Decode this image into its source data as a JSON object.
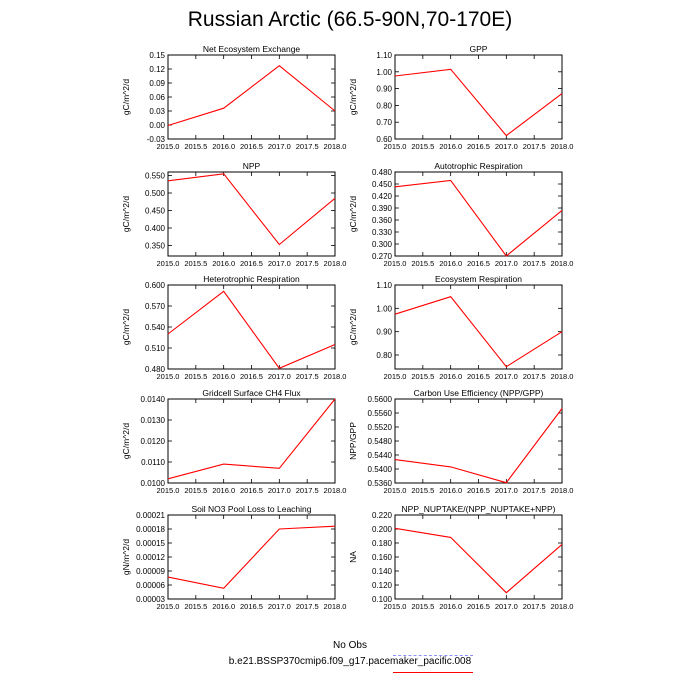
{
  "title": "Russian Arctic (66.5-90N,70-170E)",
  "colors": {
    "series": "#ff0000",
    "obs": "#9090ff",
    "frame": "#000000"
  },
  "legend": {
    "obs_label": "No Obs",
    "model_label": "b.e21.BSSP370cmip6.f09_g17.pacemaker_pacific.008"
  },
  "chart_data": [
    {
      "type": "line",
      "title": "Net Ecosystem Exchange",
      "ylabel": "gC/m^2/d",
      "x": [
        2015.0,
        2016.0,
        2017.0,
        2018.0
      ],
      "y": [
        -0.001,
        0.036,
        0.127,
        0.03
      ],
      "xlim": [
        2015.0,
        2018.0
      ],
      "ylim": [
        -0.03,
        0.15
      ],
      "xticks": [
        "2015.0",
        "2015.5",
        "2016.0",
        "2016.5",
        "2017.0",
        "2017.5",
        "2018.0"
      ],
      "yticks": [
        "-0.03",
        "0.00",
        "0.03",
        "0.06",
        "0.09",
        "0.12",
        "0.15"
      ]
    },
    {
      "type": "line",
      "title": "GPP",
      "ylabel": "gC/m^2/d",
      "x": [
        2015.0,
        2016.0,
        2017.0,
        2018.0
      ],
      "y": [
        0.975,
        1.015,
        0.62,
        0.87
      ],
      "xlim": [
        2015.0,
        2018.0
      ],
      "ylim": [
        0.6,
        1.1
      ],
      "xticks": [
        "2015.0",
        "2015.5",
        "2016.0",
        "2016.5",
        "2017.0",
        "2017.5",
        "2018.0"
      ],
      "yticks": [
        "0.60",
        "0.70",
        "0.80",
        "0.90",
        "1.00",
        "1.10"
      ]
    },
    {
      "type": "line",
      "title": "NPP",
      "ylabel": "gC/m^2/d",
      "x": [
        2015.0,
        2016.0,
        2017.0,
        2018.0
      ],
      "y": [
        0.535,
        0.555,
        0.353,
        0.485
      ],
      "xlim": [
        2015.0,
        2018.0
      ],
      "ylim": [
        0.32,
        0.56
      ],
      "xticks": [
        "2015.0",
        "2015.5",
        "2016.0",
        "2016.5",
        "2017.0",
        "2017.5",
        "2018.0"
      ],
      "yticks": [
        "0.350",
        "0.400",
        "0.450",
        "0.500",
        "0.550"
      ]
    },
    {
      "type": "line",
      "title": "Autotrophic Respiration",
      "ylabel": "gC/m^2/d",
      "x": [
        2015.0,
        2016.0,
        2017.0,
        2018.0
      ],
      "y": [
        0.443,
        0.459,
        0.27,
        0.384
      ],
      "xlim": [
        2015.0,
        2018.0
      ],
      "ylim": [
        0.27,
        0.48
      ],
      "xticks": [
        "2015.0",
        "2015.5",
        "2016.0",
        "2016.5",
        "2017.0",
        "2017.5",
        "2018.0"
      ],
      "yticks": [
        "0.270",
        "0.300",
        "0.330",
        "0.360",
        "0.390",
        "0.420",
        "0.450",
        "0.480"
      ]
    },
    {
      "type": "line",
      "title": "Heterotrophic Respiration",
      "ylabel": "gC/m^2/d",
      "x": [
        2015.0,
        2016.0,
        2017.0,
        2018.0
      ],
      "y": [
        0.53,
        0.591,
        0.481,
        0.515
      ],
      "xlim": [
        2015.0,
        2018.0
      ],
      "ylim": [
        0.48,
        0.6
      ],
      "xticks": [
        "2015.0",
        "2015.5",
        "2016.0",
        "2016.5",
        "2017.0",
        "2017.5",
        "2018.0"
      ],
      "yticks": [
        "0.480",
        "0.510",
        "0.540",
        "0.570",
        "0.600"
      ]
    },
    {
      "type": "line",
      "title": "Ecosystem Respiration",
      "ylabel": "gC/m^2/d",
      "x": [
        2015.0,
        2016.0,
        2017.0,
        2018.0
      ],
      "y": [
        0.975,
        1.05,
        0.75,
        0.9
      ],
      "xlim": [
        2015.0,
        2018.0
      ],
      "ylim": [
        0.74,
        1.1
      ],
      "xticks": [
        "2015.0",
        "2015.5",
        "2016.0",
        "2016.5",
        "2017.0",
        "2017.5",
        "2018.0"
      ],
      "yticks": [
        "0.80",
        "0.90",
        "1.00",
        "1.10"
      ]
    },
    {
      "type": "line",
      "title": "Gridcell Surface CH4 Flux",
      "ylabel": "gC/m^2/d",
      "x": [
        2015.0,
        2016.0,
        2017.0,
        2018.0
      ],
      "y": [
        0.0102,
        0.0109,
        0.0107,
        0.014
      ],
      "xlim": [
        2015.0,
        2018.0
      ],
      "ylim": [
        0.01,
        0.014
      ],
      "xticks": [
        "2015.0",
        "2015.5",
        "2016.0",
        "2016.5",
        "2017.0",
        "2017.5",
        "2018.0"
      ],
      "yticks": [
        "0.0100",
        "0.0110",
        "0.0120",
        "0.0130",
        "0.0140"
      ]
    },
    {
      "type": "line",
      "title": "Carbon Use Efficiency (NPP/GPP)",
      "ylabel": "NPP/GPP",
      "x": [
        2015.0,
        2016.0,
        2017.0,
        2018.0
      ],
      "y": [
        0.5427,
        0.5406,
        0.5361,
        0.5573
      ],
      "xlim": [
        2015.0,
        2018.0
      ],
      "ylim": [
        0.536,
        0.56
      ],
      "xticks": [
        "2015.0",
        "2015.5",
        "2016.0",
        "2016.5",
        "2017.0",
        "2017.5",
        "2018.0"
      ],
      "yticks": [
        "0.5360",
        "0.5400",
        "0.5440",
        "0.5480",
        "0.5520",
        "0.5560",
        "0.5600"
      ]
    },
    {
      "type": "line",
      "title": "Soil NO3 Pool Loss to Leaching",
      "ylabel": "gN/m^2/d",
      "x": [
        2015.0,
        2016.0,
        2017.0,
        2018.0
      ],
      "y": [
        7.7e-05,
        5.3e-05,
        0.00018,
        0.000186
      ],
      "xlim": [
        2015.0,
        2018.0
      ],
      "ylim": [
        3e-05,
        0.00021
      ],
      "xticks": [
        "2015.0",
        "2015.5",
        "2016.0",
        "2016.5",
        "2017.0",
        "2017.5",
        "2018.0"
      ],
      "yticks": [
        "0.00003",
        "0.00006",
        "0.00009",
        "0.00012",
        "0.00015",
        "0.00018",
        "0.00021"
      ]
    },
    {
      "type": "line",
      "title": "NPP_NUPTAKE/(NPP_NUPTAKE+NPP)",
      "ylabel": "NA",
      "x": [
        2015.0,
        2016.0,
        2017.0,
        2018.0
      ],
      "y": [
        0.201,
        0.188,
        0.109,
        0.178
      ],
      "xlim": [
        2015.0,
        2018.0
      ],
      "ylim": [
        0.1,
        0.22
      ],
      "xticks": [
        "2015.0",
        "2015.5",
        "2016.0",
        "2016.5",
        "2017.0",
        "2017.5",
        "2018.0"
      ],
      "yticks": [
        "0.100",
        "0.120",
        "0.140",
        "0.160",
        "0.180",
        "0.200",
        "0.220"
      ]
    }
  ]
}
